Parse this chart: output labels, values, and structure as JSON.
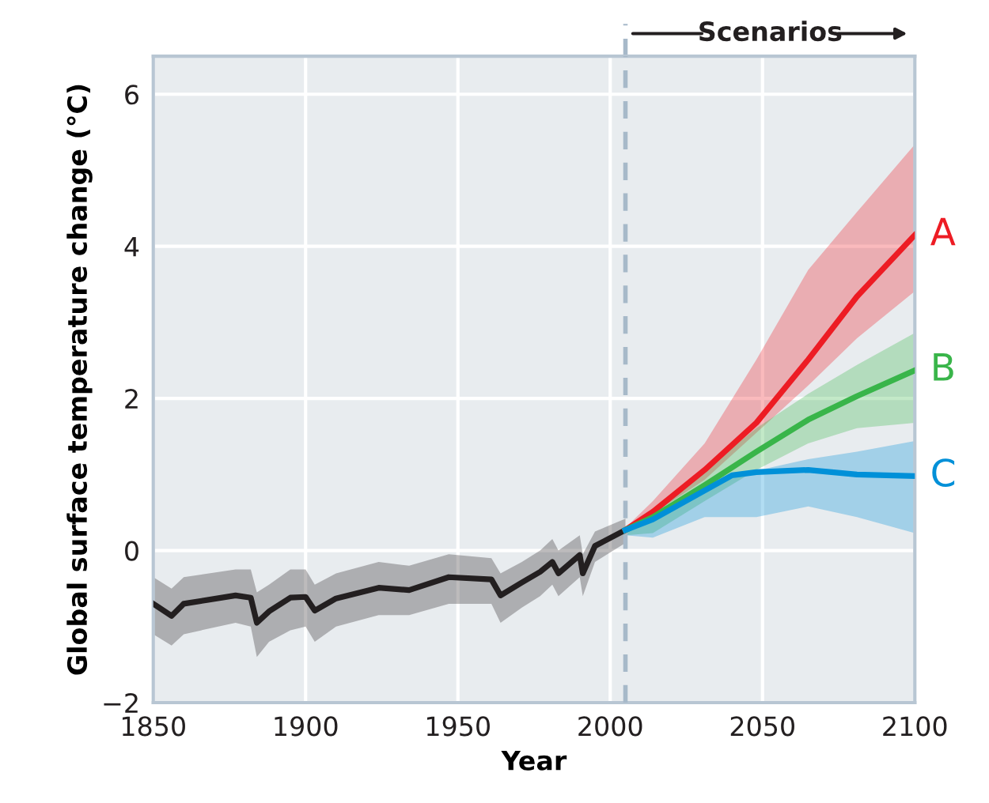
{
  "chart_data": {
    "type": "line",
    "xlabel": "Year",
    "ylabel": "Global surface temperature change (°C)",
    "xlim": [
      1850,
      2100
    ],
    "xticks": [
      1850,
      1900,
      1950,
      2000,
      2050,
      2100
    ],
    "ylim": [
      -2,
      6.5
    ],
    "yticks": [
      {
        "value": -2,
        "label": "−2"
      },
      0,
      2,
      4,
      6
    ],
    "grid": true,
    "legend": false,
    "annotations": [
      "Scenarios"
    ],
    "ref_lines": [
      {
        "axis": "x",
        "value": 2005,
        "color": "#a7b9c9",
        "line_style": "dashed"
      }
    ],
    "series": [
      {
        "color": "#231f20",
        "x": [
          1850,
          1856,
          1860,
          1877,
          1882,
          1884,
          1888,
          1895,
          1900,
          1903,
          1910,
          1924,
          1934,
          1947,
          1961,
          1964,
          1971,
          1977,
          1981,
          1983,
          1990,
          1991,
          1995,
          2005
        ],
        "values": [
          -0.7,
          -0.86,
          -0.7,
          -0.59,
          -0.62,
          -0.95,
          -0.8,
          -0.62,
          -0.61,
          -0.79,
          -0.63,
          -0.49,
          -0.52,
          -0.35,
          -0.38,
          -0.59,
          -0.42,
          -0.28,
          -0.15,
          -0.3,
          -0.06,
          -0.3,
          0.06,
          0.27
        ],
        "lower": [
          -1.1,
          -1.25,
          -1.1,
          -0.95,
          -1.0,
          -1.4,
          -1.2,
          -1.05,
          -1.0,
          -1.2,
          -1.0,
          -0.85,
          -0.85,
          -0.7,
          -0.7,
          -0.95,
          -0.75,
          -0.6,
          -0.45,
          -0.6,
          -0.35,
          -0.6,
          -0.15,
          0.1
        ],
        "upper": [
          -0.35,
          -0.5,
          -0.35,
          -0.25,
          -0.25,
          -0.55,
          -0.45,
          -0.25,
          -0.25,
          -0.45,
          -0.3,
          -0.15,
          -0.2,
          -0.05,
          -0.1,
          -0.3,
          -0.15,
          0.0,
          0.15,
          0.0,
          0.2,
          -0.05,
          0.25,
          0.42
        ]
      },
      {
        "name": "A",
        "color": "#ed1c24",
        "x": [
          2005,
          2014,
          2031,
          2048,
          2065,
          2081,
          2100
        ],
        "values": [
          0.27,
          0.51,
          1.06,
          1.68,
          2.51,
          3.34,
          4.15
        ],
        "lower": [
          0.27,
          0.48,
          0.93,
          1.55,
          2.17,
          2.79,
          3.41
        ],
        "upper": [
          0.3,
          0.65,
          1.41,
          2.51,
          3.69,
          4.45,
          5.34
        ]
      },
      {
        "name": "B",
        "color": "#39b54a",
        "x": [
          2005,
          2014,
          2031,
          2048,
          2065,
          2081,
          2100
        ],
        "values": [
          0.27,
          0.44,
          0.86,
          1.3,
          1.72,
          2.03,
          2.37
        ],
        "lower": [
          0.2,
          0.23,
          0.65,
          1.06,
          1.41,
          1.61,
          1.68
        ],
        "upper": [
          0.3,
          0.54,
          1.06,
          1.61,
          2.06,
          2.44,
          2.86
        ]
      },
      {
        "name": "C",
        "color": "#0090d8",
        "x": [
          2005,
          2014,
          2031,
          2040,
          2048,
          2065,
          2081,
          2100
        ],
        "values": [
          0.27,
          0.41,
          0.79,
          0.99,
          1.03,
          1.06,
          1.0,
          0.98
        ],
        "lower": [
          0.2,
          0.17,
          0.44,
          0.44,
          0.44,
          0.58,
          0.44,
          0.23
        ],
        "upper": [
          0.3,
          0.5,
          0.85,
          0.95,
          1.05,
          1.2,
          1.3,
          1.44
        ]
      }
    ]
  }
}
